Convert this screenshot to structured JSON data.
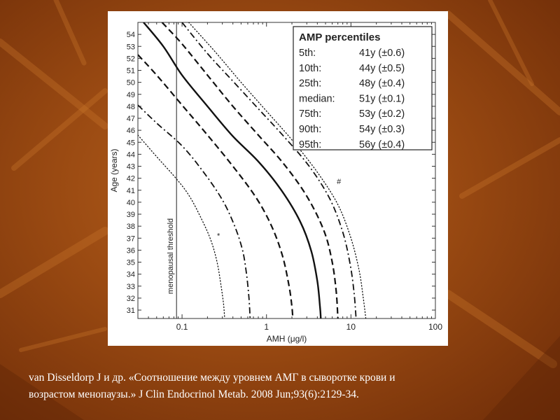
{
  "slide": {
    "background_color": "#9a4a12",
    "caption_lines": [
      "van Disseldorp J и др. «Соотношение между уровнем АМГ в сыворотке крови и",
      "возрастом менопаузы.» J Clin Endocrinol Metab. 2008 Jun;93(6):2129-34."
    ]
  },
  "chart_data": {
    "type": "line",
    "xlabel": "AMH (μg/l)",
    "ylabel": "Age (years)",
    "xscale": "log",
    "xlim": [
      0.03,
      100
    ],
    "ylim": [
      30.3,
      55
    ],
    "xticks": [
      0.1,
      1,
      10,
      100
    ],
    "xtick_labels": [
      "0.1",
      "1",
      "10",
      "100"
    ],
    "yticks": [
      31,
      32,
      33,
      34,
      35,
      36,
      37,
      38,
      39,
      40,
      41,
      42,
      43,
      44,
      45,
      46,
      47,
      48,
      49,
      50,
      51,
      52,
      53,
      54
    ],
    "grid": false,
    "threshold": {
      "x": 0.086,
      "label": "menopausal threshold"
    },
    "annotations": [
      {
        "text": "#",
        "x": 7.2,
        "y": 41.5
      },
      {
        "text": "*",
        "x": 0.27,
        "y": 37.0
      }
    ],
    "legend": {
      "title": "AMP percentiles",
      "placement": "top-right",
      "entries": [
        {
          "label": "5th:",
          "value": "41y (±0.6)"
        },
        {
          "label": "10th:",
          "value": "44y (±0.5)"
        },
        {
          "label": "25th:",
          "value": "48y (±0.4)"
        },
        {
          "label": "median:",
          "value": "51y (±0.1)"
        },
        {
          "label": "75th:",
          "value": "53y (±0.2)"
        },
        {
          "label": "90th:",
          "value": "54y (±0.3)"
        },
        {
          "label": "95th:",
          "value": "56y (±0.4)"
        }
      ]
    },
    "series": [
      {
        "style": "dotted",
        "points": [
          [
            0.03,
            45.6
          ],
          [
            0.05,
            43.8
          ],
          [
            0.08,
            42.2
          ],
          [
            0.12,
            40.6
          ],
          [
            0.17,
            38.6
          ],
          [
            0.22,
            36.8
          ],
          [
            0.26,
            35.0
          ],
          [
            0.29,
            33.0
          ],
          [
            0.31,
            31.5
          ],
          [
            0.32,
            30.3
          ]
        ]
      },
      {
        "style": "dashdot",
        "points": [
          [
            0.03,
            48.1
          ],
          [
            0.05,
            46.6
          ],
          [
            0.1,
            44.7
          ],
          [
            0.18,
            42.5
          ],
          [
            0.3,
            40.2
          ],
          [
            0.42,
            38.0
          ],
          [
            0.52,
            36.0
          ],
          [
            0.58,
            34.0
          ],
          [
            0.62,
            32.0
          ],
          [
            0.64,
            30.3
          ]
        ]
      },
      {
        "style": "dashed",
        "points": [
          [
            0.03,
            52.3
          ],
          [
            0.05,
            50.6
          ],
          [
            0.1,
            48.1
          ],
          [
            0.2,
            45.6
          ],
          [
            0.4,
            43.0
          ],
          [
            0.75,
            40.4
          ],
          [
            1.15,
            38.0
          ],
          [
            1.55,
            35.5
          ],
          [
            1.85,
            33.0
          ],
          [
            2.0,
            31.3
          ],
          [
            2.05,
            30.3
          ]
        ]
      },
      {
        "style": "solid",
        "points": [
          [
            0.035,
            55.0
          ],
          [
            0.06,
            53.0
          ],
          [
            0.1,
            50.6
          ],
          [
            0.2,
            48.0
          ],
          [
            0.4,
            45.5
          ],
          [
            0.8,
            43.4
          ],
          [
            1.5,
            41.0
          ],
          [
            2.5,
            38.4
          ],
          [
            3.4,
            35.9
          ],
          [
            4.0,
            33.4
          ],
          [
            4.3,
            31.3
          ],
          [
            4.4,
            30.3
          ]
        ]
      },
      {
        "style": "dashed",
        "points": [
          [
            0.058,
            55.0
          ],
          [
            0.1,
            53.2
          ],
          [
            0.2,
            50.6
          ],
          [
            0.4,
            48.0
          ],
          [
            0.8,
            45.6
          ],
          [
            1.6,
            43.2
          ],
          [
            3.0,
            40.5
          ],
          [
            4.8,
            37.6
          ],
          [
            6.0,
            35.0
          ],
          [
            6.7,
            32.5
          ],
          [
            7.0,
            30.3
          ]
        ]
      },
      {
        "style": "dashdot",
        "points": [
          [
            0.1,
            55.0
          ],
          [
            0.2,
            52.4
          ],
          [
            0.4,
            50.1
          ],
          [
            0.8,
            47.8
          ],
          [
            1.6,
            45.5
          ],
          [
            3.2,
            43.0
          ],
          [
            5.6,
            40.3
          ],
          [
            8.0,
            37.5
          ],
          [
            9.8,
            34.8
          ],
          [
            10.9,
            32.4
          ],
          [
            11.5,
            30.3
          ]
        ]
      },
      {
        "style": "dotted",
        "points": [
          [
            0.12,
            55.0
          ],
          [
            0.25,
            52.5
          ],
          [
            0.5,
            50.0
          ],
          [
            1.0,
            47.6
          ],
          [
            2.0,
            45.2
          ],
          [
            4.0,
            42.5
          ],
          [
            7.0,
            39.8
          ],
          [
            10.0,
            37.0
          ],
          [
            12.5,
            34.3
          ],
          [
            14.0,
            32.0
          ],
          [
            15.0,
            30.3
          ]
        ]
      }
    ]
  }
}
